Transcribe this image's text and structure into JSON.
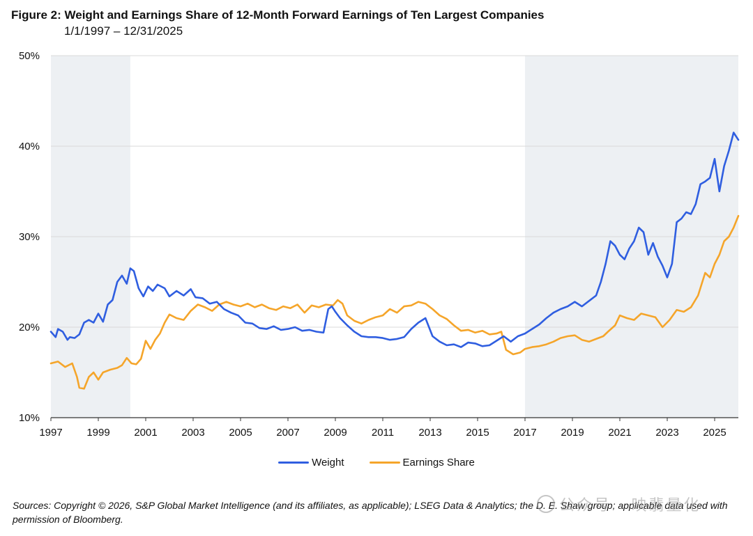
{
  "chart_data": {
    "type": "line",
    "title": "Figure 2: Weight and Earnings Share of 12-Month Forward Earnings of Ten Largest Companies",
    "subtitle": "1/1/1997 – 12/31/2025",
    "xlabel": "",
    "ylabel": "",
    "xlim": [
      1997.0,
      2026.0
    ],
    "ylim": [
      10,
      50
    ],
    "y_ticks": [
      10,
      20,
      30,
      40,
      50
    ],
    "y_tick_labels": [
      "10%",
      "20%",
      "30%",
      "40%",
      "50%"
    ],
    "x_ticks": [
      1997,
      1999,
      2001,
      2003,
      2005,
      2007,
      2009,
      2011,
      2013,
      2015,
      2017,
      2019,
      2021,
      2023,
      2025
    ],
    "x_tick_labels": [
      "1997",
      "1999",
      "2001",
      "2003",
      "2005",
      "2007",
      "2009",
      "2011",
      "2013",
      "2015",
      "2017",
      "2019",
      "2021",
      "2023",
      "2025"
    ],
    "grid": "horizontal",
    "shaded_periods": [
      [
        1997.0,
        2000.35
      ],
      [
        2017.0,
        2026.0
      ]
    ],
    "legend_position": "bottom-center",
    "series": [
      {
        "name": "Weight",
        "color": "#2f5ee0",
        "x": [
          1997.0,
          1997.2,
          1997.3,
          1997.5,
          1997.7,
          1997.8,
          1998.0,
          1998.2,
          1998.4,
          1998.6,
          1998.8,
          1999.0,
          1999.2,
          1999.4,
          1999.6,
          1999.8,
          2000.0,
          2000.2,
          2000.35,
          2000.5,
          2000.7,
          2000.9,
          2001.1,
          2001.3,
          2001.5,
          2001.8,
          2002.0,
          2002.3,
          2002.6,
          2002.9,
          2003.1,
          2003.4,
          2003.7,
          2004.0,
          2004.3,
          2004.6,
          2004.9,
          2005.2,
          2005.5,
          2005.8,
          2006.1,
          2006.4,
          2006.7,
          2007.0,
          2007.3,
          2007.6,
          2007.9,
          2008.2,
          2008.5,
          2008.7,
          2008.85,
          2009.0,
          2009.2,
          2009.5,
          2009.8,
          2010.1,
          2010.4,
          2010.7,
          2011.0,
          2011.3,
          2011.6,
          2011.9,
          2012.2,
          2012.5,
          2012.8,
          2013.1,
          2013.4,
          2013.7,
          2014.0,
          2014.3,
          2014.6,
          2014.9,
          2015.2,
          2015.5,
          2015.8,
          2016.1,
          2016.4,
          2016.7,
          2017.0,
          2017.3,
          2017.6,
          2017.9,
          2018.2,
          2018.5,
          2018.8,
          2019.1,
          2019.4,
          2019.7,
          2020.0,
          2020.2,
          2020.4,
          2020.6,
          2020.8,
          2021.0,
          2021.2,
          2021.4,
          2021.6,
          2021.8,
          2022.0,
          2022.2,
          2022.4,
          2022.6,
          2022.8,
          2023.0,
          2023.2,
          2023.4,
          2023.6,
          2023.8,
          2024.0,
          2024.2,
          2024.4,
          2024.6,
          2024.8,
          2025.0,
          2025.2,
          2025.4,
          2025.6,
          2025.8,
          2026.0
        ],
        "values": [
          19.5,
          18.9,
          19.8,
          19.5,
          18.6,
          18.9,
          18.8,
          19.2,
          20.5,
          20.8,
          20.5,
          21.5,
          20.6,
          22.5,
          23.0,
          25.0,
          25.7,
          24.8,
          26.5,
          26.2,
          24.3,
          23.4,
          24.5,
          24.0,
          24.7,
          24.3,
          23.4,
          24.0,
          23.5,
          24.2,
          23.3,
          23.2,
          22.6,
          22.8,
          22.0,
          21.6,
          21.3,
          20.5,
          20.4,
          19.9,
          19.8,
          20.1,
          19.7,
          19.8,
          20.0,
          19.6,
          19.7,
          19.5,
          19.4,
          22.0,
          22.3,
          21.7,
          21.0,
          20.2,
          19.5,
          19.0,
          18.9,
          18.9,
          18.8,
          18.6,
          18.7,
          18.9,
          19.8,
          20.5,
          21.0,
          19.0,
          18.4,
          18.0,
          18.1,
          17.8,
          18.3,
          18.2,
          17.9,
          18.0,
          18.5,
          19.0,
          18.4,
          19.0,
          19.3,
          19.8,
          20.3,
          21.0,
          21.6,
          22.0,
          22.3,
          22.8,
          22.3,
          22.9,
          23.5,
          25.0,
          27.0,
          29.5,
          29.0,
          28.0,
          27.5,
          28.7,
          29.5,
          31.0,
          30.5,
          28.0,
          29.3,
          27.8,
          26.8,
          25.5,
          27.0,
          31.6,
          32.0,
          32.7,
          32.5,
          33.6,
          35.8,
          36.1,
          36.5,
          38.6,
          35.0,
          37.8,
          39.5,
          41.5,
          40.7
        ]
      },
      {
        "name": "Earnings Share",
        "color": "#f5a52a",
        "x": [
          1997.0,
          1997.3,
          1997.6,
          1997.9,
          1998.1,
          1998.2,
          1998.4,
          1998.6,
          1998.8,
          1999.0,
          1999.2,
          1999.5,
          1999.8,
          2000.0,
          2000.2,
          2000.4,
          2000.6,
          2000.8,
          2001.0,
          2001.2,
          2001.4,
          2001.6,
          2001.8,
          2002.0,
          2002.3,
          2002.6,
          2002.9,
          2003.2,
          2003.5,
          2003.8,
          2004.1,
          2004.4,
          2004.7,
          2005.0,
          2005.3,
          2005.6,
          2005.9,
          2006.2,
          2006.5,
          2006.8,
          2007.1,
          2007.4,
          2007.7,
          2008.0,
          2008.3,
          2008.6,
          2008.9,
          2009.1,
          2009.3,
          2009.5,
          2009.8,
          2010.1,
          2010.4,
          2010.7,
          2011.0,
          2011.3,
          2011.6,
          2011.9,
          2012.2,
          2012.5,
          2012.8,
          2013.1,
          2013.4,
          2013.7,
          2014.0,
          2014.3,
          2014.6,
          2014.9,
          2015.2,
          2015.5,
          2015.8,
          2016.0,
          2016.2,
          2016.5,
          2016.8,
          2017.0,
          2017.3,
          2017.6,
          2017.9,
          2018.2,
          2018.5,
          2018.8,
          2019.1,
          2019.4,
          2019.7,
          2020.0,
          2020.3,
          2020.5,
          2020.8,
          2021.0,
          2021.3,
          2021.6,
          2021.9,
          2022.2,
          2022.5,
          2022.8,
          2023.1,
          2023.4,
          2023.7,
          2024.0,
          2024.3,
          2024.6,
          2024.8,
          2025.0,
          2025.2,
          2025.4,
          2025.6,
          2025.8,
          2026.0
        ],
        "values": [
          16.0,
          16.2,
          15.6,
          16.0,
          14.5,
          13.3,
          13.2,
          14.5,
          15.0,
          14.2,
          15.0,
          15.3,
          15.5,
          15.8,
          16.6,
          16.0,
          15.9,
          16.5,
          18.5,
          17.6,
          18.6,
          19.3,
          20.5,
          21.4,
          21.0,
          20.8,
          21.8,
          22.5,
          22.2,
          21.8,
          22.5,
          22.8,
          22.5,
          22.3,
          22.6,
          22.2,
          22.5,
          22.1,
          21.9,
          22.3,
          22.1,
          22.5,
          21.6,
          22.4,
          22.2,
          22.5,
          22.4,
          23.0,
          22.6,
          21.3,
          20.7,
          20.4,
          20.8,
          21.1,
          21.3,
          22.0,
          21.6,
          22.3,
          22.4,
          22.8,
          22.6,
          22.0,
          21.3,
          20.9,
          20.2,
          19.6,
          19.7,
          19.4,
          19.6,
          19.2,
          19.3,
          19.5,
          17.5,
          17.0,
          17.2,
          17.6,
          17.8,
          17.9,
          18.1,
          18.4,
          18.8,
          19.0,
          19.1,
          18.6,
          18.4,
          18.7,
          19.0,
          19.5,
          20.2,
          21.3,
          21.0,
          20.8,
          21.5,
          21.3,
          21.1,
          20.0,
          20.8,
          21.9,
          21.7,
          22.2,
          23.5,
          26.0,
          25.5,
          27.0,
          28.0,
          29.5,
          30.0,
          31.0,
          32.3
        ]
      }
    ]
  },
  "legend": {
    "weight_label": "Weight",
    "earnings_label": "Earnings Share"
  },
  "source_text": "Sources: Copyright © 2026, S&P Global Market Intelligence (and its affiliates, as applicable); LSEG Data & Analytics; the D. E. Shaw group; applicable data used with permission of Bloomberg.",
  "watermark_text": "公众号 · 映翡量化"
}
